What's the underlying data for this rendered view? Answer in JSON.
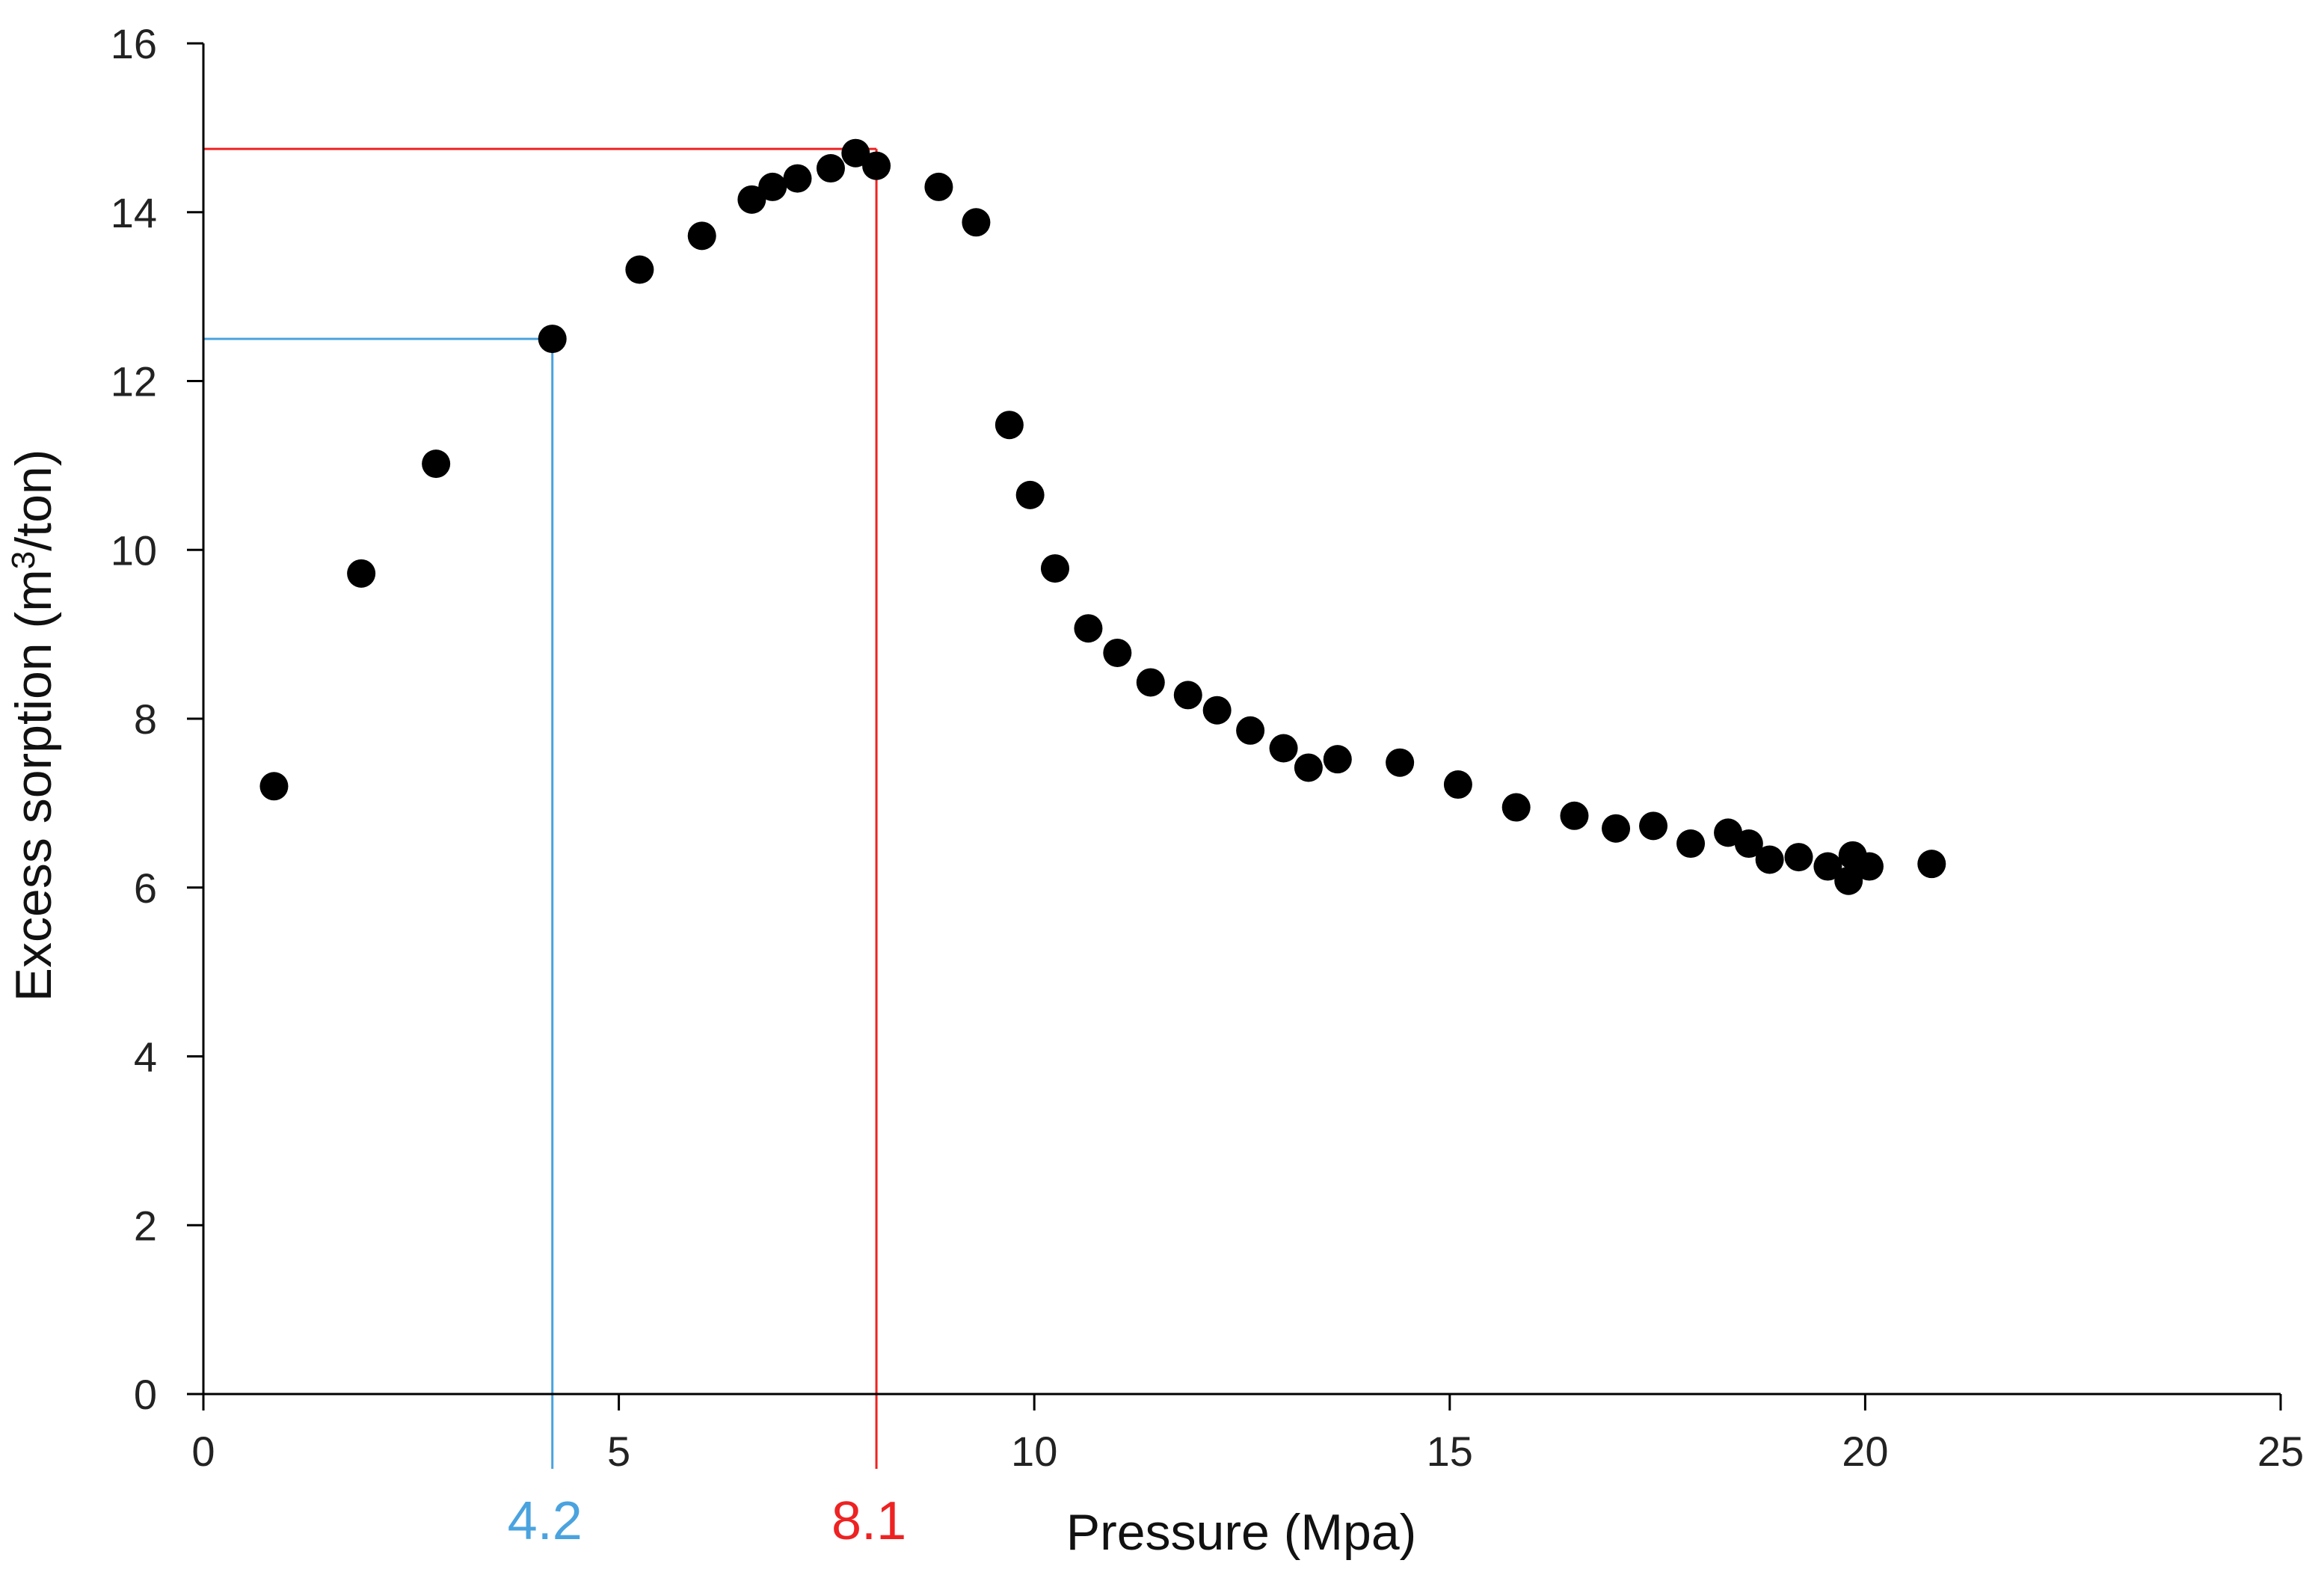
{
  "chart_data": {
    "type": "scatter",
    "title": "",
    "xlabel": "Pressure (Mpa)",
    "ylabel_main": "Excess sorption (m",
    "ylabel_sup": "3",
    "ylabel_tail": "/ton)",
    "xlim": [
      0,
      25
    ],
    "ylim": [
      0,
      16
    ],
    "xticks": [
      0,
      5,
      10,
      15,
      20,
      25
    ],
    "yticks": [
      0,
      2,
      4,
      6,
      8,
      10,
      12,
      14,
      16
    ],
    "grid": false,
    "marker_color": "#000000",
    "axis_color": "#000000",
    "series": [
      {
        "name": "Excess sorption",
        "x": [
          0.85,
          1.9,
          2.8,
          4.2,
          5.25,
          6.0,
          6.6,
          6.85,
          7.15,
          7.55,
          7.85,
          8.1,
          8.85,
          9.3,
          9.7,
          9.95,
          10.25,
          10.65,
          11.0,
          11.4,
          11.85,
          12.2,
          12.6,
          13.0,
          13.3,
          13.65,
          14.4,
          15.1,
          15.8,
          16.5,
          17.0,
          17.45,
          17.9,
          18.35,
          18.6,
          18.85,
          19.2,
          19.55,
          19.8,
          19.85,
          20.05,
          20.8
        ],
        "y": [
          7.2,
          9.72,
          11.02,
          12.5,
          13.32,
          13.72,
          14.15,
          14.3,
          14.4,
          14.52,
          14.7,
          14.55,
          14.3,
          13.88,
          11.48,
          10.65,
          9.78,
          9.07,
          8.78,
          8.43,
          8.28,
          8.1,
          7.86,
          7.65,
          7.42,
          7.52,
          7.48,
          7.22,
          6.95,
          6.85,
          6.7,
          6.73,
          6.52,
          6.65,
          6.52,
          6.33,
          6.36,
          6.25,
          6.08,
          6.38,
          6.25,
          6.28
        ]
      }
    ],
    "reference_lines": [
      {
        "name": "blue-reference",
        "color": "#4aa3df",
        "x": 4.2,
        "y": 12.5,
        "label": "4.2"
      },
      {
        "name": "red-reference",
        "color": "#ee2222",
        "x": 8.1,
        "y": 14.75,
        "label": "8.1"
      }
    ]
  }
}
